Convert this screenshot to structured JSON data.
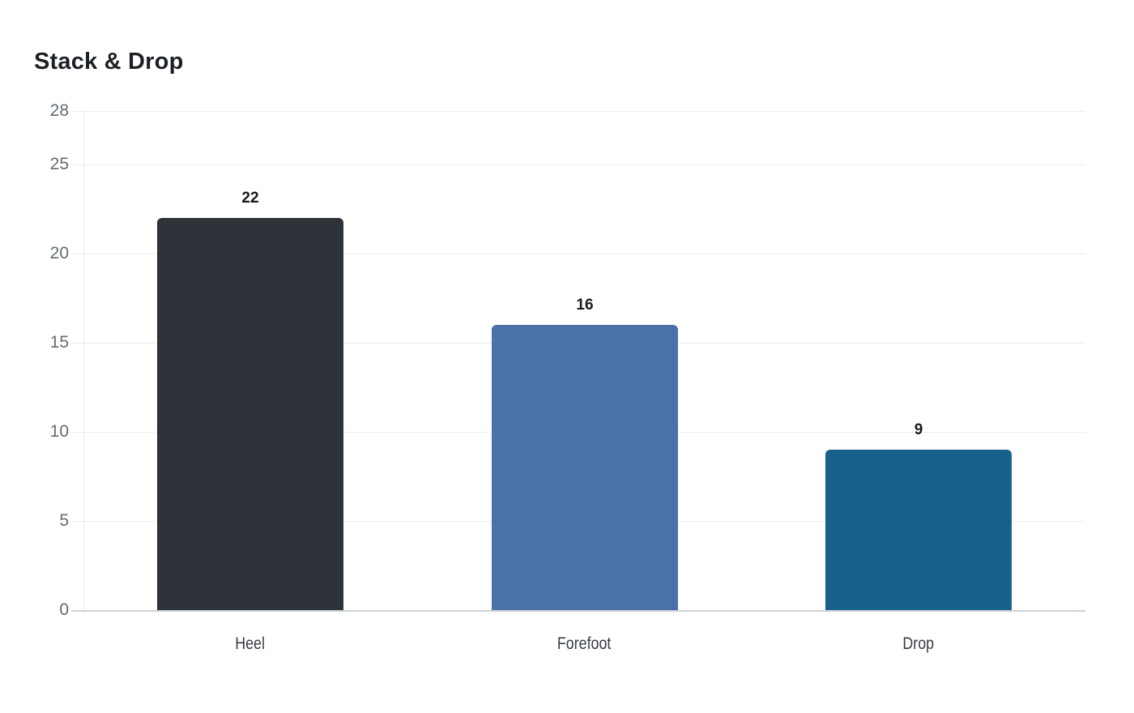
{
  "page": {
    "background_color": "#ffffff"
  },
  "chart_data": {
    "type": "bar",
    "title": "Stack & Drop",
    "categories": [
      "Heel",
      "Forefoot",
      "Drop"
    ],
    "values": [
      22,
      16,
      9
    ],
    "value_labels": [
      "22",
      "16",
      "9"
    ],
    "bar_colors": [
      "#2d3338",
      "#4a72a8",
      "#17618b"
    ],
    "yticks": [
      0,
      5,
      10,
      15,
      20,
      25,
      28
    ],
    "ylim": [
      0,
      28
    ],
    "xlabel": "",
    "ylabel": "",
    "grid": true,
    "legend": "none",
    "gridline_color": "#ededf0",
    "axis_line_color": "#ccd1d6",
    "ytick_label_color": "#646c74",
    "category_label_color": "#363d44",
    "value_label_color": "#17191c",
    "title_color": "#1d2126"
  }
}
